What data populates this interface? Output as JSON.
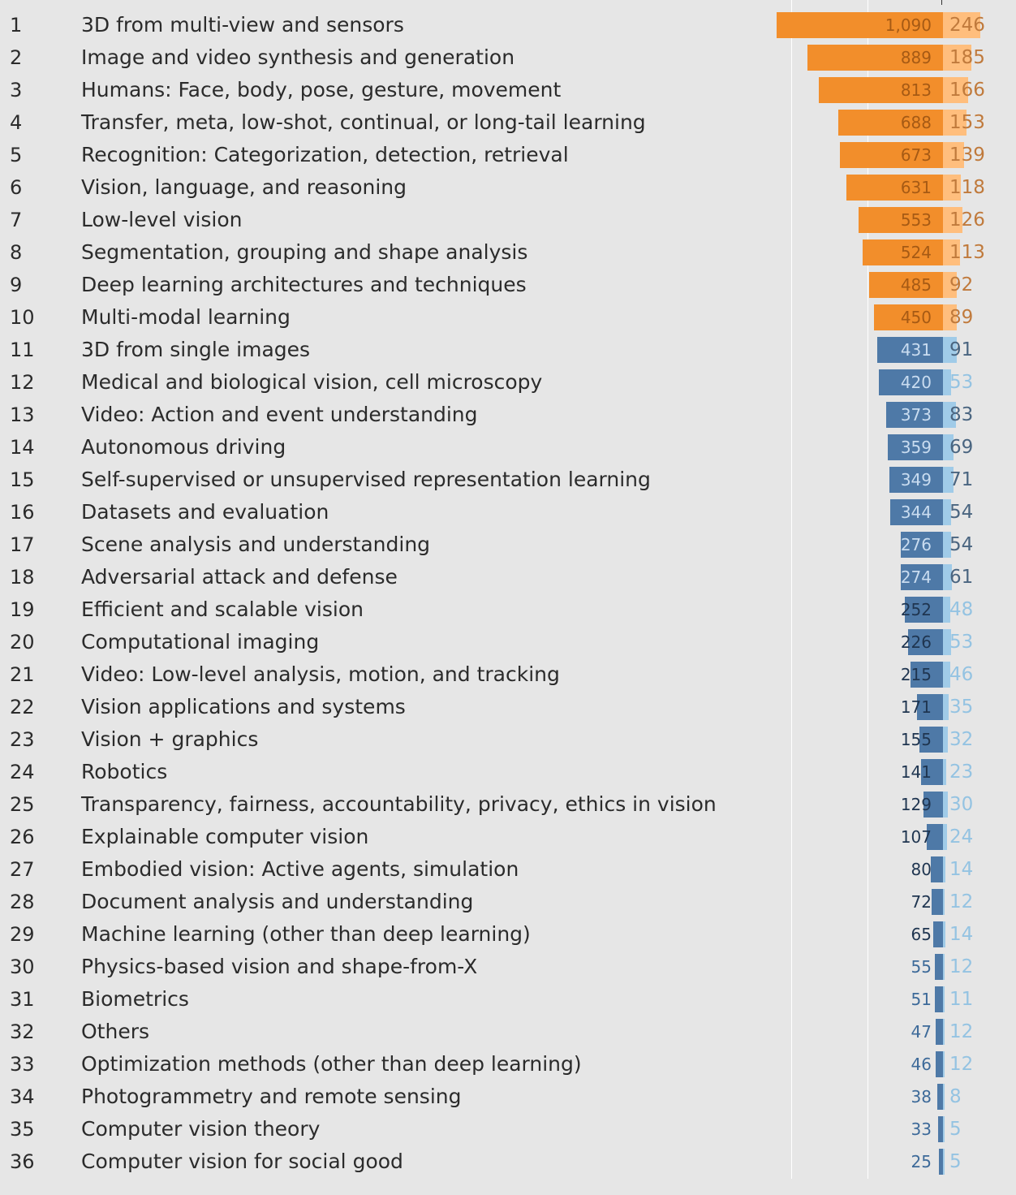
{
  "chart_data": {
    "type": "bar",
    "orientation": "horizontal",
    "axis_zero": "center",
    "series": [
      {
        "values": [
          1090,
          889,
          813,
          688,
          673,
          631,
          553,
          524,
          485,
          450,
          431,
          420,
          373,
          359,
          349,
          344,
          276,
          274,
          252,
          226,
          215,
          171,
          155,
          141,
          129,
          107,
          80,
          72,
          65,
          55,
          51,
          47,
          46,
          38,
          33,
          25
        ],
        "value_labels": [
          "1,090",
          "889",
          "813",
          "688",
          "673",
          "631",
          "553",
          "524",
          "485",
          "450",
          "431",
          "420",
          "373",
          "359",
          "349",
          "344",
          "276",
          "274",
          "252",
          "226",
          "215",
          "171",
          "155",
          "141",
          "129",
          "107",
          "80",
          "72",
          "65",
          "55",
          "51",
          "47",
          "46",
          "38",
          "33",
          "25"
        ],
        "direction": "left"
      },
      {
        "values": [
          246,
          185,
          166,
          153,
          139,
          118,
          126,
          113,
          92,
          89,
          91,
          53,
          83,
          69,
          71,
          54,
          54,
          61,
          48,
          53,
          46,
          35,
          32,
          23,
          30,
          24,
          14,
          12,
          14,
          12,
          11,
          12,
          12,
          8,
          5,
          5
        ],
        "direction": "right"
      }
    ],
    "ranks": [
      "1",
      "2",
      "3",
      "4",
      "5",
      "6",
      "7",
      "8",
      "9",
      "10",
      "11",
      "12",
      "13",
      "14",
      "15",
      "16",
      "17",
      "18",
      "19",
      "20",
      "21",
      "22",
      "23",
      "24",
      "25",
      "26",
      "27",
      "28",
      "29",
      "30",
      "31",
      "32",
      "33",
      "34",
      "35",
      "36"
    ],
    "categories": [
      "3D from multi-view and sensors",
      "Image and video synthesis and generation",
      "Humans: Face, body, pose, gesture, movement",
      "Transfer, meta, low-shot, continual, or long-tail learning",
      "Recognition: Categorization, detection, retrieval",
      "Vision, language, and reasoning",
      "Low-level vision",
      "Segmentation, grouping and shape analysis",
      "Deep learning architectures and techniques",
      "Multi-modal learning",
      "3D from single images",
      "Medical and biological vision, cell microscopy",
      "Video: Action and event understanding",
      "Autonomous driving",
      "Self-supervised or unsupervised representation learning",
      "Datasets and evaluation",
      "Scene analysis and understanding",
      "Adversarial attack and defense",
      "Efficient and scalable vision",
      "Computational imaging",
      "Video: Low-level analysis, motion, and tracking",
      "Vision applications and systems",
      "Vision + graphics",
      "Robotics",
      "Transparency, fairness, accountability, privacy, ethics in vision",
      "Explainable computer vision",
      "Embodied vision: Active agents, simulation",
      "Document analysis and understanding",
      "Machine learning (other than deep learning)",
      "Physics-based vision and shape-from-X",
      "Biometrics",
      "Others",
      "Optimization methods (other than deep learning)",
      "Photogrammetry and remote sensing",
      "Computer vision theory",
      "Computer vision for social good"
    ],
    "highlight_top_n": 10,
    "colors": {
      "background": "#e6e6e6",
      "top_left_bar": "#f28e2b",
      "top_right_bar": "#ffbe7d",
      "top_label_left": "#a65a14",
      "top_label_right": "#c07a3c",
      "rest_left_bar": "#4e79a7",
      "rest_right_bar": "#a0cbe8",
      "rest_label_dark": "#1f3550",
      "rest_label_inside": "#c9dcf0",
      "rest_label_outside": "#3d6a99",
      "rest_label_right_dark": "#4a6580",
      "rest_label_right_light": "#94c3e2",
      "gridline": "#ffffff",
      "text": "#2b2b2b"
    }
  }
}
